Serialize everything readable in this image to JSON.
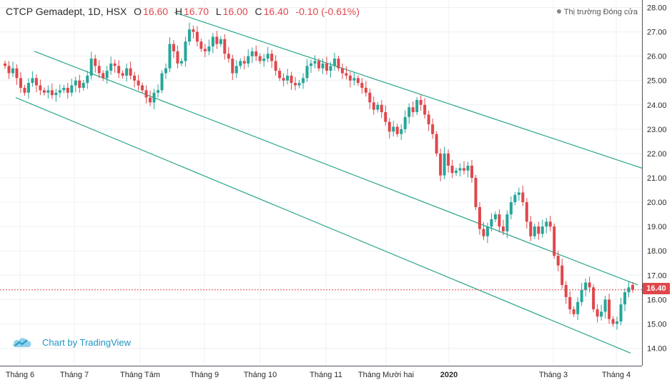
{
  "header": {
    "symbol": "CTCP Gemadept, 1D, HSX",
    "o_label": "O",
    "o_val": "16.60",
    "h_label": "H",
    "h_val": "16.70",
    "l_label": "L",
    "l_val": "16.00",
    "c_label": "C",
    "c_val": "16.40",
    "change": "-0.10 (-0.61%)"
  },
  "status": "Thị trường Đóng cửa",
  "brand": "Chart by TradingView",
  "last_price_label": "16.40",
  "colors": {
    "up": "#26a69a",
    "down": "#e0474c",
    "grid": "#eef0f3",
    "channel": "#2aa58c",
    "brand": "#2196c4"
  },
  "icons": {
    "brand": "tradingview-cloud-icon",
    "status": "status-dot-icon"
  },
  "chart_data": {
    "type": "candlestick",
    "y_axis": {
      "min": 14,
      "max": 28,
      "ticks": [
        "14.00",
        "15.00",
        "16.00",
        "17.00",
        "18.00",
        "19.00",
        "20.00",
        "21.00",
        "22.00",
        "23.00",
        "24.00",
        "25.00",
        "26.00",
        "27.00",
        "28.00"
      ],
      "position": "right"
    },
    "x_axis": {
      "labels": [
        "Tháng 6",
        "Tháng 7",
        "Tháng Tám",
        "Tháng 9",
        "Tháng 10",
        "Tháng 11",
        "Tháng Mười hai",
        "2020",
        "Tháng 3",
        "Tháng 4"
      ]
    },
    "grid": true,
    "last_price": 16.4,
    "channel_lines": [
      {
        "from": [
          "Tháng 6",
          24.3
        ],
        "to": [
          "Tháng 4",
          13.8
        ]
      },
      {
        "from": [
          "Tháng 6",
          26.2
        ],
        "to": [
          "Tháng 4",
          16.6
        ]
      },
      {
        "from": [
          "Tháng 9",
          27.8
        ],
        "to": [
          "Tháng 4",
          21.4
        ]
      }
    ],
    "closes": [
      25.6,
      25.3,
      25.5,
      25.1,
      24.7,
      24.5,
      24.9,
      25.1,
      24.8,
      24.6,
      24.5,
      24.6,
      24.4,
      24.5,
      24.6,
      24.7,
      24.5,
      24.8,
      25.0,
      24.7,
      24.9,
      25.2,
      25.9,
      25.6,
      25.3,
      25.1,
      25.4,
      25.7,
      25.6,
      25.3,
      25.2,
      25.5,
      25.2,
      25.0,
      24.8,
      24.6,
      24.3,
      24.1,
      24.5,
      24.6,
      25.3,
      25.5,
      26.5,
      26.2,
      25.7,
      25.8,
      26.6,
      27.1,
      27.0,
      26.6,
      26.3,
      26.2,
      26.4,
      26.8,
      26.5,
      26.7,
      26.1,
      25.9,
      25.3,
      25.6,
      25.8,
      25.7,
      26.0,
      26.2,
      26.0,
      25.8,
      25.9,
      26.1,
      25.8,
      25.4,
      25.1,
      25.0,
      25.2,
      24.9,
      24.8,
      24.9,
      25.1,
      25.6,
      25.7,
      25.8,
      25.5,
      25.7,
      25.4,
      25.6,
      25.9,
      25.5,
      25.3,
      25.2,
      25.0,
      25.1,
      24.9,
      24.7,
      24.5,
      24.1,
      23.8,
      24.0,
      23.7,
      23.3,
      22.9,
      23.1,
      22.8,
      23.0,
      23.5,
      23.9,
      23.7,
      24.2,
      24.0,
      23.6,
      23.2,
      22.8,
      22.0,
      21.1,
      22.0,
      21.5,
      21.2,
      21.3,
      21.4,
      21.3,
      21.5,
      21.0,
      19.8,
      18.9,
      18.6,
      19.0,
      19.3,
      19.5,
      19.0,
      18.8,
      19.5,
      20.0,
      20.3,
      20.4,
      20.0,
      19.2,
      18.6,
      19.0,
      18.7,
      19.0,
      19.2,
      19.0,
      17.8,
      17.4,
      16.6,
      16.1,
      15.6,
      15.4,
      15.9,
      16.4,
      16.7,
      16.5,
      15.6,
      15.3,
      15.5,
      16.0,
      15.2,
      15.0,
      15.1,
      15.8,
      16.3,
      16.5,
      16.4
    ]
  }
}
